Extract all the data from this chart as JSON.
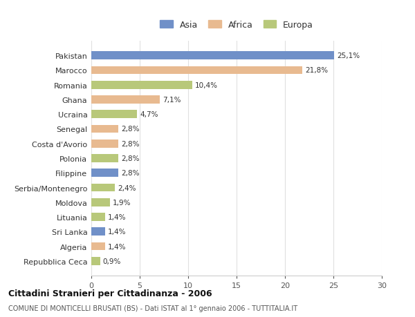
{
  "categories": [
    "Pakistan",
    "Marocco",
    "Romania",
    "Ghana",
    "Ucraina",
    "Senegal",
    "Costa d'Avorio",
    "Polonia",
    "Filippine",
    "Serbia/Montenegro",
    "Moldova",
    "Lituania",
    "Sri Lanka",
    "Algeria",
    "Repubblica Ceca"
  ],
  "values": [
    25.1,
    21.8,
    10.4,
    7.1,
    4.7,
    2.8,
    2.8,
    2.8,
    2.8,
    2.4,
    1.9,
    1.4,
    1.4,
    1.4,
    0.9
  ],
  "labels": [
    "25,1%",
    "21,8%",
    "10,4%",
    "7,1%",
    "4,7%",
    "2,8%",
    "2,8%",
    "2,8%",
    "2,8%",
    "2,4%",
    "1,9%",
    "1,4%",
    "1,4%",
    "1,4%",
    "0,9%"
  ],
  "continents": [
    "Asia",
    "Africa",
    "Europa",
    "Africa",
    "Europa",
    "Africa",
    "Africa",
    "Europa",
    "Asia",
    "Europa",
    "Europa",
    "Europa",
    "Asia",
    "Africa",
    "Europa"
  ],
  "colors": {
    "Asia": "#7090c8",
    "Africa": "#e8ba90",
    "Europa": "#b8c87a"
  },
  "legend": [
    "Asia",
    "Africa",
    "Europa"
  ],
  "legend_colors": [
    "#7090c8",
    "#e8ba90",
    "#b8c87a"
  ],
  "title": "Cittadini Stranieri per Cittadinanza - 2006",
  "subtitle": "COMUNE DI MONTICELLI BRUSATI (BS) - Dati ISTAT al 1° gennaio 2006 - TUTTITALIA.IT",
  "xlim": [
    0,
    30
  ],
  "xticks": [
    0,
    5,
    10,
    15,
    20,
    25,
    30
  ],
  "background_color": "#ffffff",
  "plot_background": "#ffffff",
  "grid_color": "#e0e0e0"
}
